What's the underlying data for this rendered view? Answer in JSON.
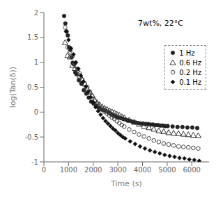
{
  "chart_data": {
    "type": "scatter",
    "xlabel": "Time (s)",
    "ylabel": "log(Tan(δ))",
    "annotation": "7wt%, 22°C",
    "xlim": [
      0,
      6700
    ],
    "ylim": [
      -1,
      2
    ],
    "xticks": [
      0,
      1000,
      2000,
      3000,
      4000,
      5000,
      6000
    ],
    "yticks": [
      -1,
      -0.5,
      0,
      0.5,
      1,
      1.5,
      2
    ],
    "grid": false,
    "legend": "upper right",
    "series": [
      {
        "name": "1 Hz",
        "color": "#222222",
        "marker": "circle",
        "x": [
          820,
          870,
          920,
          970,
          1020,
          1070,
          1120,
          1170,
          1220,
          1270,
          1320,
          1420,
          1520,
          1620,
          1720,
          1820,
          1920,
          2020,
          2120,
          2220,
          2320,
          2420,
          2520,
          2620,
          2720,
          2820,
          2920,
          3020,
          3120,
          3220,
          3320,
          3420,
          3520,
          3620,
          3720,
          3820,
          3920,
          4020,
          4120,
          4220,
          4320,
          4420,
          4520,
          4620,
          4720,
          4820,
          4920,
          5020,
          5220,
          5420,
          5620,
          5820,
          6020,
          6220
        ],
        "values": [
          1.93,
          1.78,
          1.62,
          1.54,
          1.3,
          1.25,
          1.1,
          0.99,
          0.96,
          0.8,
          0.76,
          0.64,
          0.57,
          0.44,
          0.37,
          0.29,
          0.21,
          0.17,
          0.13,
          0.09,
          0.06,
          0.04,
          0.02,
          -0.01,
          -0.04,
          -0.07,
          -0.09,
          -0.11,
          -0.12,
          -0.14,
          -0.15,
          -0.17,
          -0.18,
          -0.2,
          -0.21,
          -0.22,
          -0.23,
          -0.23,
          -0.24,
          -0.24,
          -0.25,
          -0.25,
          -0.26,
          -0.26,
          -0.27,
          -0.27,
          -0.28,
          -0.28,
          -0.29,
          -0.3,
          -0.3,
          -0.31,
          -0.31,
          -0.32
        ]
      },
      {
        "name": "0.6 Hz",
        "color": "#333333",
        "marker": "triangle-open",
        "x": [
          860,
          960,
          1060,
          1160,
          1260,
          1360,
          1460,
          1560,
          1660,
          1760,
          1860,
          1960,
          2060,
          2160,
          2260,
          2360,
          2460,
          2560,
          2660,
          2760,
          2860,
          2960,
          3060,
          3160,
          3260,
          3460,
          3660,
          3860,
          4060,
          4260,
          4460,
          4660,
          4860,
          5060,
          5260,
          5460,
          5660,
          5860,
          6060,
          6260
        ],
        "values": [
          1.4,
          1.14,
          1.11,
          0.94,
          0.88,
          0.85,
          0.73,
          0.65,
          0.57,
          0.47,
          0.4,
          0.33,
          0.25,
          0.19,
          0.15,
          0.11,
          0.08,
          0.06,
          0.03,
          0.01,
          -0.01,
          -0.04,
          -0.06,
          -0.09,
          -0.11,
          -0.16,
          -0.2,
          -0.24,
          -0.28,
          -0.31,
          -0.34,
          -0.37,
          -0.39,
          -0.41,
          -0.42,
          -0.43,
          -0.44,
          -0.45,
          -0.46,
          -0.47
        ]
      },
      {
        "name": "0.2 Hz",
        "color": "#444444",
        "marker": "circle-open",
        "x": [
          860,
          960,
          1060,
          1160,
          1260,
          1360,
          1460,
          1560,
          1660,
          1760,
          1860,
          1960,
          2060,
          2160,
          2260,
          2360,
          2460,
          2560,
          2660,
          2760,
          2860,
          2960,
          3060,
          3160,
          3260,
          3460,
          3660,
          3860,
          4060,
          4260,
          4460,
          4660,
          4860,
          5060,
          5260,
          5460,
          5660,
          5860,
          6060,
          6260
        ],
        "values": [
          1.7,
          1.3,
          1.22,
          1.12,
          0.98,
          0.87,
          0.77,
          0.65,
          0.57,
          0.5,
          0.41,
          0.32,
          0.22,
          0.15,
          0.09,
          0.05,
          0.01,
          -0.03,
          -0.07,
          -0.11,
          -0.14,
          -0.18,
          -0.22,
          -0.26,
          -0.29,
          -0.35,
          -0.4,
          -0.45,
          -0.49,
          -0.53,
          -0.57,
          -0.6,
          -0.63,
          -0.65,
          -0.67,
          -0.69,
          -0.7,
          -0.71,
          -0.72,
          -0.73
        ]
      },
      {
        "name": "0.1 Hz",
        "color": "#111111",
        "marker": "diamond",
        "x": [
          900,
          1000,
          1100,
          1200,
          1300,
          1400,
          1500,
          1600,
          1700,
          1800,
          1900,
          2000,
          2100,
          2200,
          2300,
          2400,
          2500,
          2600,
          2700,
          2800,
          2900,
          3000,
          3100,
          3200,
          3300,
          3500,
          3700,
          3900,
          4100,
          4300,
          4500,
          4700,
          4900,
          5100,
          5300,
          5500,
          5700,
          5900,
          6100,
          6300
        ],
        "values": [
          1.62,
          1.45,
          1.28,
          1.16,
          1.0,
          0.87,
          0.73,
          0.61,
          0.51,
          0.41,
          0.3,
          0.2,
          0.1,
          0.02,
          -0.05,
          -0.12,
          -0.18,
          -0.23,
          -0.28,
          -0.33,
          -0.37,
          -0.42,
          -0.46,
          -0.5,
          -0.53,
          -0.59,
          -0.64,
          -0.69,
          -0.73,
          -0.77,
          -0.8,
          -0.83,
          -0.86,
          -0.88,
          -0.9,
          -0.92,
          -0.93,
          -0.95,
          -0.96,
          -0.98
        ]
      }
    ]
  }
}
